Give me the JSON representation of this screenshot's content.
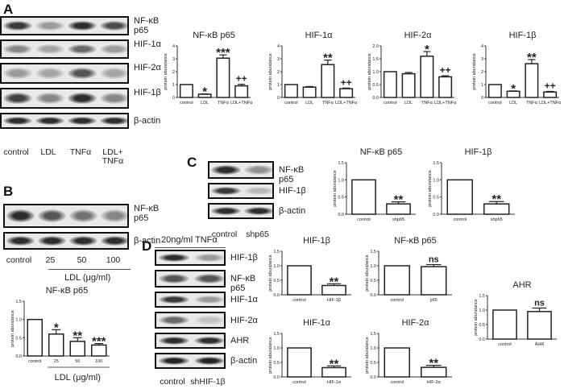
{
  "panels": {
    "A": "A",
    "B": "B",
    "C": "C",
    "D": "D"
  },
  "blots": {
    "A": {
      "lanes": [
        "control",
        "LDL",
        "TNFα",
        "LDL+\nTNFα"
      ],
      "rows": [
        {
          "label": "NF-κB\np65",
          "intensity": [
            0.85,
            0.35,
            0.9,
            0.75
          ]
        },
        {
          "label": "HIF-1α",
          "intensity": [
            0.45,
            0.3,
            0.6,
            0.35
          ]
        },
        {
          "label": "HIF-2α",
          "intensity": [
            0.35,
            0.3,
            0.7,
            0.3
          ]
        },
        {
          "label": "HIF-1β",
          "intensity": [
            0.8,
            0.45,
            0.9,
            0.45
          ]
        },
        {
          "label": "β-actin",
          "intensity": [
            0.9,
            0.9,
            0.9,
            0.9
          ]
        }
      ]
    },
    "B": {
      "lanes": [
        "control",
        "25",
        "50",
        "100"
      ],
      "xlabel": "LDL (μg/ml)",
      "rows": [
        {
          "label": "NF-κB\np65",
          "intensity": [
            0.9,
            0.7,
            0.55,
            0.45
          ]
        },
        {
          "label": "β-actin",
          "intensity": [
            0.9,
            0.9,
            0.9,
            0.9
          ]
        }
      ]
    },
    "C": {
      "lanes": [
        "control",
        "shp65"
      ],
      "rows": [
        {
          "label": "NF-κB\np65",
          "intensity": [
            0.9,
            0.4
          ]
        },
        {
          "label": "HIF-1β",
          "intensity": [
            0.85,
            0.2
          ]
        },
        {
          "label": "β-actin",
          "intensity": [
            0.9,
            0.9
          ]
        }
      ]
    },
    "D": {
      "header": "20ng/ml TNFα",
      "lanes": [
        "control",
        "shHIF-1β"
      ],
      "rows": [
        {
          "label": "HIF-1β",
          "intensity": [
            0.9,
            0.35
          ]
        },
        {
          "label": "NF-κB\np65",
          "intensity": [
            0.7,
            0.7
          ]
        },
        {
          "label": "HIF-1α",
          "intensity": [
            0.85,
            0.35
          ]
        },
        {
          "label": "HIF-2α",
          "intensity": [
            0.6,
            0.15
          ]
        },
        {
          "label": "AHR",
          "intensity": [
            0.9,
            0.9
          ]
        },
        {
          "label": "β-actin",
          "intensity": [
            0.95,
            0.95
          ]
        }
      ]
    }
  },
  "chart_data": [
    {
      "id": "A1",
      "type": "bar",
      "title": "NF-κB p65",
      "ylabel": "protein abundance",
      "categories": [
        "control",
        "LDL",
        "TNFα",
        "LDL+TNFα"
      ],
      "values": [
        1,
        0.25,
        3.05,
        0.9
      ],
      "errors": [
        0,
        0.03,
        0.25,
        0.12
      ],
      "annotations": [
        "",
        "*",
        "***",
        "++"
      ],
      "ylim": [
        0,
        4
      ],
      "yticks": [
        "0",
        "1",
        "2",
        "3",
        "4"
      ]
    },
    {
      "id": "A2",
      "type": "bar",
      "title": "HIF-1α",
      "ylabel": "protein abundance",
      "categories": [
        "control",
        "LDL",
        "TNFα",
        "LDL+TNFα"
      ],
      "values": [
        1,
        0.8,
        2.55,
        0.68
      ],
      "errors": [
        0,
        0.05,
        0.35,
        0.05
      ],
      "annotations": [
        "",
        "",
        "**",
        "++"
      ],
      "ylim": [
        0,
        4
      ],
      "yticks": [
        "0",
        "1",
        "2",
        "3",
        "4"
      ]
    },
    {
      "id": "A3",
      "type": "bar",
      "title": "HIF-2α",
      "ylabel": "protein abundance",
      "categories": [
        "control",
        "LDL",
        "TNFα",
        "LDL+TNFα"
      ],
      "values": [
        1,
        0.92,
        1.6,
        0.8
      ],
      "errors": [
        0,
        0.05,
        0.18,
        0.04
      ],
      "annotations": [
        "",
        "",
        "*",
        "++"
      ],
      "ylim": [
        0,
        2
      ],
      "yticks": [
        "0.0",
        "0.5",
        "1.0",
        "1.5",
        "2.0"
      ]
    },
    {
      "id": "A4",
      "type": "bar",
      "title": "HIF-1β",
      "ylabel": "protein abundance",
      "categories": [
        "control",
        "LDL",
        "TNFα",
        "LDL+TNFα"
      ],
      "values": [
        1,
        0.48,
        2.62,
        0.42
      ],
      "errors": [
        0,
        0.03,
        0.32,
        0.05
      ],
      "annotations": [
        "",
        "*",
        "**",
        "++"
      ],
      "ylim": [
        0,
        4
      ],
      "yticks": [
        "0",
        "1",
        "2",
        "3",
        "4"
      ]
    },
    {
      "id": "C1",
      "type": "bar",
      "title": "NF-κB p65",
      "ylabel": "protein abundance",
      "categories": [
        "control",
        "shp65"
      ],
      "values": [
        1,
        0.3
      ],
      "errors": [
        0,
        0.06
      ],
      "annotations": [
        "",
        "**"
      ],
      "ylim": [
        0,
        1.5
      ],
      "yticks": [
        "0.0",
        "0.5",
        "1.0",
        "1.5"
      ]
    },
    {
      "id": "C2",
      "type": "bar",
      "title": "HIF-1β",
      "ylabel": "protein abundance",
      "categories": [
        "control",
        "shp65"
      ],
      "values": [
        1,
        0.3
      ],
      "errors": [
        0,
        0.07
      ],
      "annotations": [
        "",
        "**"
      ],
      "ylim": [
        0,
        1.5
      ],
      "yticks": [
        "0.0",
        "0.5",
        "1.0",
        "1.5"
      ]
    },
    {
      "id": "B1",
      "type": "bar",
      "title": "NF-κB p65",
      "ylabel": "protein abundance",
      "xlabel": "LDL (μg/ml)",
      "categories": [
        "control",
        "25",
        "50",
        "100"
      ],
      "values": [
        1,
        0.6,
        0.4,
        0.3
      ],
      "errors": [
        0,
        0.12,
        0.1,
        0.04
      ],
      "annotations": [
        "",
        "*",
        "**",
        "***"
      ],
      "ylim": [
        0,
        1.5
      ],
      "yticks": [
        "0.0",
        "0.5",
        "1.0",
        "1.5"
      ]
    },
    {
      "id": "D1",
      "type": "bar",
      "title": "HIF-1β",
      "ylabel": "protein abundance",
      "categories": [
        "control",
        "HIF-1β"
      ],
      "values": [
        1,
        0.32
      ],
      "errors": [
        0,
        0.06
      ],
      "annotations": [
        "",
        "**"
      ],
      "ylim": [
        0,
        1.5
      ],
      "yticks": [
        "0.0",
        "0.5",
        "1.0",
        "1.5"
      ]
    },
    {
      "id": "D2",
      "type": "bar",
      "title": "NF-κB p65",
      "ylabel": "protein abundance",
      "categories": [
        "control",
        "p65"
      ],
      "values": [
        1,
        0.97
      ],
      "errors": [
        0,
        0.07
      ],
      "annotations": [
        "",
        "ns"
      ],
      "ylim": [
        0,
        1.5
      ],
      "yticks": [
        "0.0",
        "0.5",
        "1.0",
        "1.5"
      ]
    },
    {
      "id": "D3",
      "type": "bar",
      "title": "HIF-1α",
      "ylabel": "protein abundance",
      "categories": [
        "control",
        "HIF-1α"
      ],
      "values": [
        1,
        0.32
      ],
      "errors": [
        0,
        0.06
      ],
      "annotations": [
        "",
        "**"
      ],
      "ylim": [
        0,
        1.5
      ],
      "yticks": [
        "0.0",
        "0.5",
        "1.0",
        "1.5"
      ]
    },
    {
      "id": "D4",
      "type": "bar",
      "title": "HIF-2α",
      "ylabel": "protein abundance",
      "categories": [
        "control",
        "HIF-2α"
      ],
      "values": [
        1,
        0.33
      ],
      "errors": [
        0,
        0.07
      ],
      "annotations": [
        "",
        "**"
      ],
      "ylim": [
        0,
        1.5
      ],
      "yticks": [
        "0.0",
        "0.5",
        "1.0",
        "1.5"
      ]
    },
    {
      "id": "D5",
      "type": "bar",
      "title": "AHR",
      "ylabel": "protein abundance",
      "categories": [
        "control",
        "AHR"
      ],
      "values": [
        1,
        0.95
      ],
      "errors": [
        0,
        0.12
      ],
      "annotations": [
        "",
        "ns"
      ],
      "ylim": [
        0,
        1.5
      ],
      "yticks": [
        "0.0",
        "0.5",
        "1.0",
        "1.5"
      ]
    }
  ]
}
